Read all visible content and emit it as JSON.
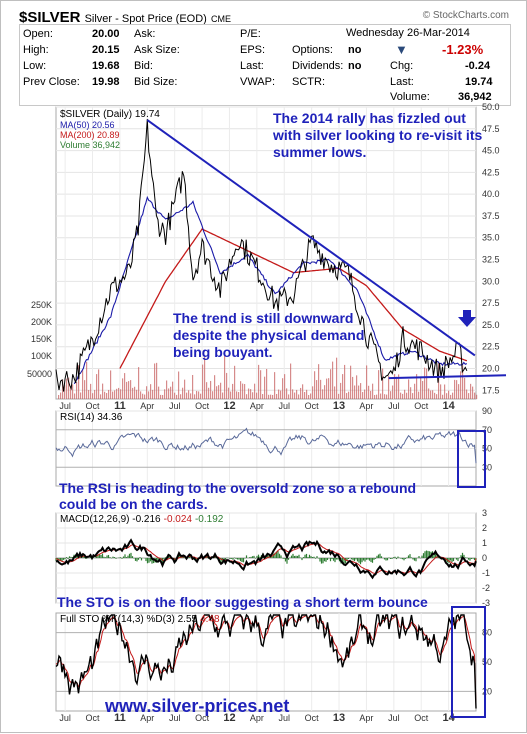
{
  "header": {
    "symbol": "$SILVER",
    "description": "Silver - Spot Price (EOD)",
    "exchange": "CME",
    "brand": "© StockCharts.com",
    "date": "Wednesday  26-Mar-2014",
    "pct_change": "-1.23%",
    "quote": [
      {
        "label": "Open:",
        "value": "20.00"
      },
      {
        "label": "High:",
        "value": "20.15"
      },
      {
        "label": "Low:",
        "value": "19.68"
      },
      {
        "label": "Prev Close:",
        "value": "19.98"
      },
      {
        "label": "Ask:",
        "value": ""
      },
      {
        "label": "Ask Size:",
        "value": ""
      },
      {
        "label": "Bid:",
        "value": ""
      },
      {
        "label": "Bid Size:",
        "value": ""
      },
      {
        "label": "P/E:",
        "value": ""
      },
      {
        "label": "EPS:",
        "value": ""
      },
      {
        "label": "Last:",
        "value": ""
      },
      {
        "label": "VWAP:",
        "value": ""
      },
      {
        "label": "Options:",
        "value": "no"
      },
      {
        "label": "Dividends:",
        "value": "no"
      },
      {
        "label": "SCTR:",
        "value": ""
      },
      {
        "label": "Chg:",
        "value": "-0.24"
      },
      {
        "label": "Last:",
        "value": "19.74"
      },
      {
        "label": "Volume:",
        "value": "36,942"
      }
    ]
  },
  "annotations": {
    "rally": "The 2014 rally has fizzled out with silver looking to re-visit its summer lows.",
    "trend": "The trend is still downward despite the physical demand being bouyant.",
    "rsi": "The RSI is heading to the oversold zone so a rebound could be on the cards.",
    "sto": "The STO is on the floor suggesting a short term bounce",
    "watermark": "www.silver-prices.net"
  },
  "colors": {
    "price": "#000000",
    "ma50": "#1a1aa8",
    "ma200": "#c41a1a",
    "volume": "#c86464",
    "trendline": "#1f22ba",
    "rsi": "#5a6a9a",
    "macd_signal": "#c41a1a",
    "macd_hist": "#2e7d32",
    "sto_d": "#c41a1a"
  },
  "chart_data": [
    {
      "type": "line",
      "panel": "price",
      "legend": [
        "$SILVER (Daily) 19.74",
        "MA(50) 20.56",
        "MA(200) 20.89",
        "Volume 36,942"
      ],
      "series": [
        {
          "name": "$SILVER (Daily)",
          "x": [
            "2010-06",
            "2010-08",
            "2010-10",
            "2010-12",
            "2011-02",
            "2011-03",
            "2011-04",
            "2011-05",
            "2011-06",
            "2011-08",
            "2011-09",
            "2011-10",
            "2011-12",
            "2012-02",
            "2012-04",
            "2012-06",
            "2012-08",
            "2012-10",
            "2012-12",
            "2013-02",
            "2013-04",
            "2013-06",
            "2013-07",
            "2013-08",
            "2013-10",
            "2013-12",
            "2014-02",
            "2014-03"
          ],
          "values": [
            18.5,
            19.0,
            23.5,
            29.0,
            31.0,
            36.0,
            47.5,
            37.0,
            35.5,
            42.5,
            30.5,
            34.0,
            29.0,
            35.0,
            31.5,
            27.5,
            28.5,
            34.5,
            32.0,
            31.0,
            24.0,
            19.0,
            19.5,
            23.5,
            22.0,
            19.5,
            22.0,
            19.74
          ]
        },
        {
          "name": "MA(50)",
          "x": [
            "2010-08",
            "2010-12",
            "2011-04",
            "2011-06",
            "2011-09",
            "2011-12",
            "2012-03",
            "2012-06",
            "2012-09",
            "2012-12",
            "2013-03",
            "2013-06",
            "2013-09",
            "2013-12",
            "2014-03"
          ],
          "values": [
            18.3,
            26.0,
            39.5,
            37.0,
            39.0,
            31.0,
            33.0,
            28.5,
            32.0,
            32.5,
            29.0,
            21.0,
            22.0,
            20.5,
            20.56
          ]
        },
        {
          "name": "MA(200)",
          "x": [
            "2011-01",
            "2011-06",
            "2011-10",
            "2012-03",
            "2012-08",
            "2013-01",
            "2013-04",
            "2013-08",
            "2013-12",
            "2014-03"
          ],
          "values": [
            20.0,
            30.0,
            36.0,
            33.5,
            31.0,
            31.5,
            29.5,
            24.5,
            22.0,
            20.89
          ]
        }
      ],
      "volume_axis": {
        "ticks": [
          "50000",
          "100K",
          "150K",
          "200K",
          "250K"
        ]
      },
      "trendline": {
        "from": {
          "x": "2011-04",
          "y": 48.5
        },
        "to": {
          "x": "2014-03",
          "y": 21.5
        }
      },
      "support_line": {
        "from": {
          "x": "2013-06",
          "y": 18.9
        },
        "to": {
          "x": "2014-03",
          "y": 19.0
        }
      },
      "ylim": [
        16.5,
        50
      ],
      "yticks": [
        "17.5",
        "20.0",
        "22.5",
        "25.0",
        "27.5",
        "30.0",
        "32.5",
        "35.0",
        "37.5",
        "40.0",
        "42.5",
        "45.0",
        "47.5",
        "50.0"
      ],
      "xticks": [
        "Jul",
        "Oct",
        "11",
        "Apr",
        "Jul",
        "Oct",
        "12",
        "Apr",
        "Jul",
        "Oct",
        "13",
        "Apr",
        "Jul",
        "Oct",
        "14"
      ]
    },
    {
      "type": "line",
      "panel": "rsi",
      "legend": "RSI(14) 34.36",
      "ylim": [
        10,
        90
      ],
      "yticks": [
        "30",
        "50",
        "70",
        "90"
      ],
      "last": 34.36
    },
    {
      "type": "line",
      "panel": "macd",
      "legend": [
        "MACD(12,26,9) -0.216",
        "-0.024",
        "-0.192"
      ],
      "yticks": [
        "-3",
        "-2",
        "-1",
        "0",
        "1",
        "2",
        "3"
      ],
      "ylim": [
        -3,
        3
      ],
      "last": {
        "macd": -0.216,
        "signal": -0.024,
        "hist": -0.192
      }
    },
    {
      "type": "line",
      "panel": "sto",
      "legend": [
        "Full STO %K(14,3) %D(3) 2.55",
        "4.48"
      ],
      "yticks": [
        "20",
        "50",
        "80"
      ],
      "ylim": [
        0,
        100
      ],
      "last": {
        "k": 2.55,
        "d": 4.48
      }
    }
  ]
}
